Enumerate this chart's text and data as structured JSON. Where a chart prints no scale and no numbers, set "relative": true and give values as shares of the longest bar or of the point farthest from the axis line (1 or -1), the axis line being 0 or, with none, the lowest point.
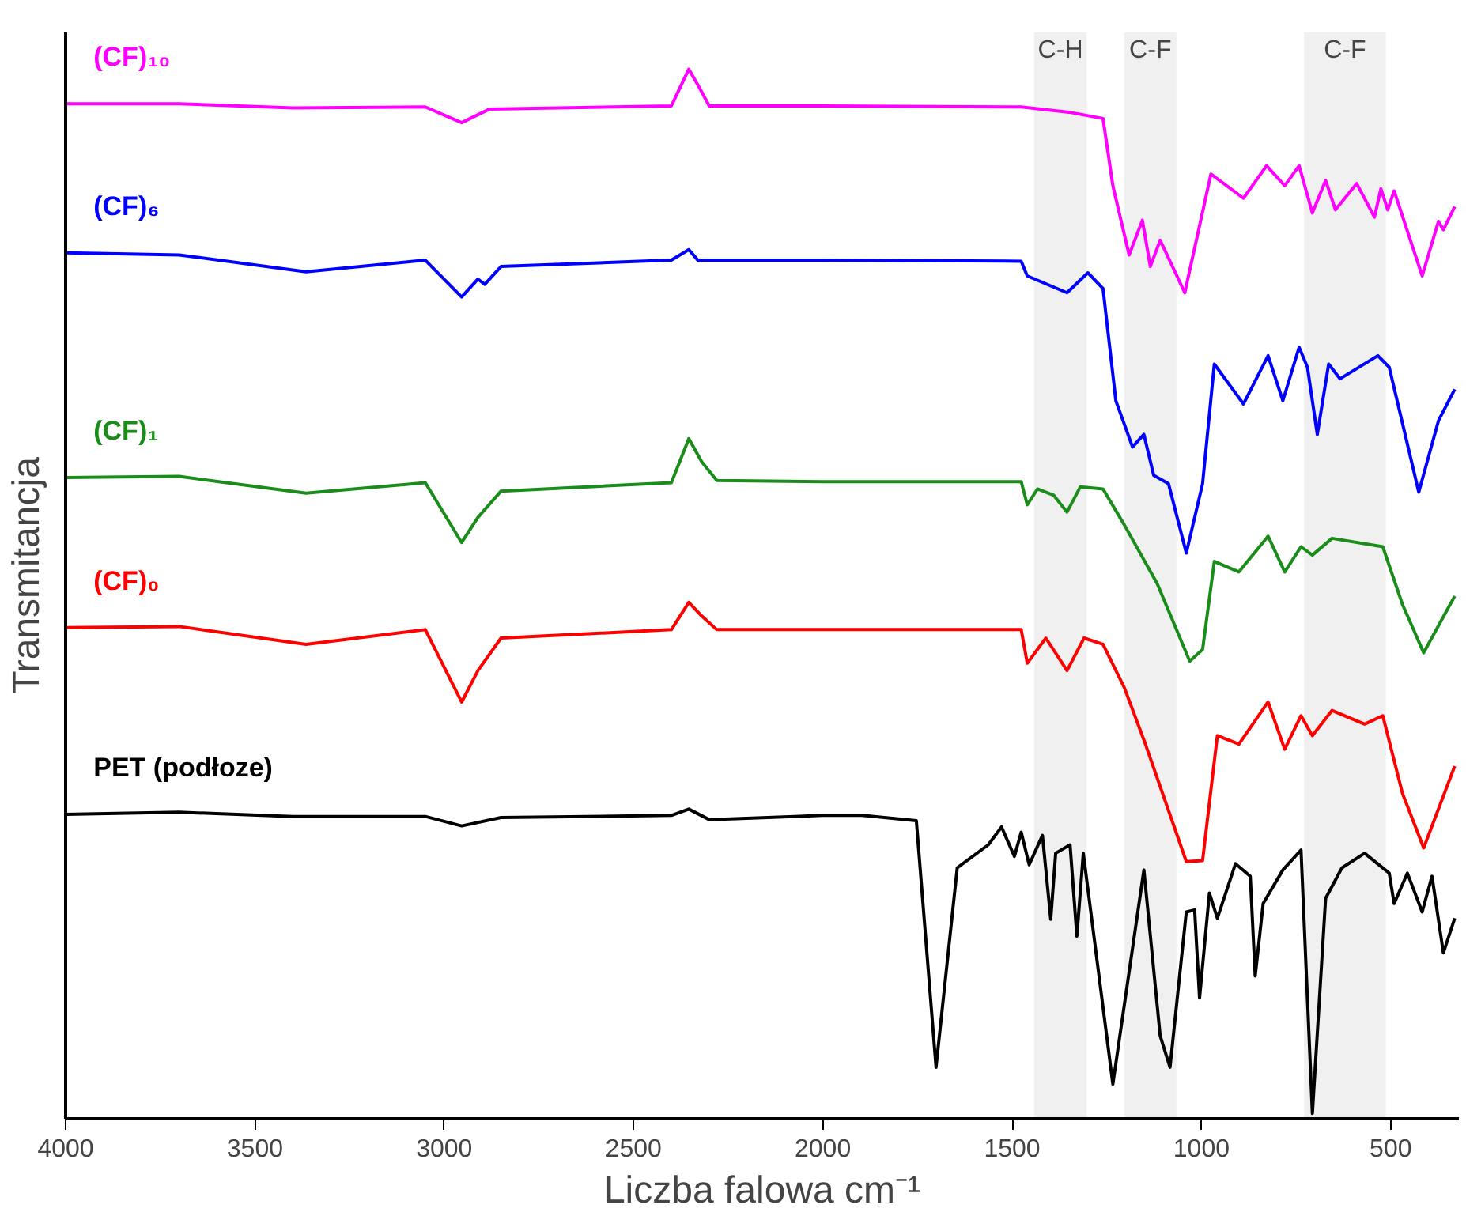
{
  "chart_data": {
    "type": "line",
    "relative": true,
    "xlabel": "Liczba falowa cm⁻¹",
    "ylabel": "Transmitancja",
    "xlim": [
      4000,
      320
    ],
    "xticks": [
      4000,
      3500,
      3000,
      2500,
      2000,
      1500,
      1000,
      500
    ],
    "grid": false,
    "line_style": "solid",
    "bands": [
      {
        "axis": "x",
        "from": 1442,
        "to": 1303,
        "label": "C-H",
        "color": "#f0f0f0"
      },
      {
        "axis": "x",
        "from": 1204,
        "to": 1066,
        "label": "C-F",
        "color": "#f0f0f0"
      },
      {
        "axis": "x",
        "from": 729,
        "to": 513,
        "label": "C-F",
        "color": "#f0f0f0"
      }
    ],
    "series": [
      {
        "name": "(CF)₁₀",
        "color": "#ff00ff",
        "x": [
          4000,
          3700,
          3400,
          3050,
          2954,
          2880,
          2400,
          2354,
          2330,
          2300,
          2000,
          1476,
          1350,
          1260,
          1234,
          1191,
          1156,
          1135,
          1109,
          1044,
          975,
          889,
          828,
          780,
          742,
          707,
          672,
          646,
          590,
          543,
          526,
          508,
          491,
          417,
          374,
          361,
          331
        ],
        "values": [
          0.967,
          0.967,
          0.963,
          0.964,
          0.949,
          0.962,
          0.965,
          1.0,
          0.985,
          0.965,
          0.965,
          0.964,
          0.959,
          0.953,
          0.889,
          0.823,
          0.856,
          0.812,
          0.837,
          0.787,
          0.9,
          0.877,
          0.908,
          0.889,
          0.908,
          0.863,
          0.894,
          0.866,
          0.891,
          0.859,
          0.886,
          0.866,
          0.884,
          0.803,
          0.855,
          0.847,
          0.869
        ]
      },
      {
        "name": "(CF)₆",
        "color": "#0000ff",
        "x": [
          4000,
          3700,
          3365,
          3050,
          2954,
          2911,
          2893,
          2850,
          2400,
          2354,
          2330,
          2000,
          1476,
          1460,
          1355,
          1300,
          1260,
          1226,
          1182,
          1152,
          1126,
          1087,
          1040,
          997,
          966,
          889,
          824,
          785,
          742,
          720,
          694,
          664,
          634,
          534,
          504,
          426,
          374,
          331
        ],
        "values": [
          0.825,
          0.823,
          0.807,
          0.818,
          0.783,
          0.8,
          0.795,
          0.812,
          0.818,
          0.828,
          0.818,
          0.818,
          0.817,
          0.803,
          0.787,
          0.806,
          0.791,
          0.684,
          0.64,
          0.652,
          0.613,
          0.605,
          0.539,
          0.605,
          0.719,
          0.681,
          0.727,
          0.684,
          0.735,
          0.716,
          0.652,
          0.719,
          0.705,
          0.727,
          0.716,
          0.597,
          0.665,
          0.695
        ]
      },
      {
        "name": "(CF)₁",
        "color": "#1a8c1a",
        "x": [
          4000,
          3700,
          3365,
          3050,
          2954,
          2911,
          2850,
          2400,
          2354,
          2320,
          2280,
          2000,
          1476,
          1460,
          1433,
          1390,
          1355,
          1320,
          1260,
          1204,
          1117,
          1031,
          997,
          966,
          901,
          824,
          780,
          737,
          707,
          655,
          521,
          469,
          413,
          331
        ],
        "values": [
          0.611,
          0.612,
          0.596,
          0.606,
          0.549,
          0.573,
          0.598,
          0.606,
          0.648,
          0.626,
          0.608,
          0.607,
          0.607,
          0.585,
          0.6,
          0.594,
          0.578,
          0.602,
          0.6,
          0.566,
          0.51,
          0.436,
          0.447,
          0.531,
          0.521,
          0.555,
          0.521,
          0.545,
          0.537,
          0.553,
          0.545,
          0.49,
          0.444,
          0.498
        ]
      },
      {
        "name": "(CF)₀",
        "color": "#ff0000",
        "x": [
          4000,
          3700,
          3365,
          3050,
          2954,
          2911,
          2850,
          2400,
          2354,
          2320,
          2280,
          2000,
          1476,
          1460,
          1411,
          1355,
          1310,
          1260,
          1204,
          1148,
          1040,
          997,
          958,
          901,
          824,
          780,
          737,
          707,
          655,
          569,
          521,
          469,
          413,
          331
        ],
        "values": [
          0.468,
          0.469,
          0.452,
          0.466,
          0.397,
          0.427,
          0.458,
          0.466,
          0.492,
          0.479,
          0.466,
          0.466,
          0.466,
          0.434,
          0.458,
          0.427,
          0.458,
          0.452,
          0.411,
          0.357,
          0.245,
          0.246,
          0.365,
          0.357,
          0.397,
          0.352,
          0.384,
          0.365,
          0.389,
          0.376,
          0.384,
          0.31,
          0.258,
          0.336
        ]
      },
      {
        "name": "PET (podłoze)",
        "color": "#000000",
        "x": [
          4000,
          3700,
          3400,
          3050,
          2954,
          2850,
          2400,
          2354,
          2300,
          2000,
          1896,
          1753,
          1701,
          1645,
          1563,
          1528,
          1494,
          1476,
          1455,
          1420,
          1398,
          1385,
          1347,
          1329,
          1312,
          1234,
          1152,
          1109,
          1083,
          1040,
          1018,
          1005,
          979,
          958,
          910,
          871,
          858,
          837,
          785,
          737,
          707,
          672,
          629,
          569,
          504,
          491,
          456,
          417,
          391,
          361,
          331
        ],
        "values": [
          0.29,
          0.292,
          0.288,
          0.288,
          0.279,
          0.287,
          0.289,
          0.295,
          0.285,
          0.289,
          0.289,
          0.284,
          0.049,
          0.239,
          0.261,
          0.278,
          0.25,
          0.273,
          0.242,
          0.27,
          0.19,
          0.253,
          0.261,
          0.174,
          0.253,
          0.033,
          0.237,
          0.079,
          0.049,
          0.197,
          0.199,
          0.115,
          0.215,
          0.191,
          0.243,
          0.231,
          0.136,
          0.205,
          0.237,
          0.256,
          0.005,
          0.21,
          0.239,
          0.253,
          0.234,
          0.205,
          0.234,
          0.197,
          0.231,
          0.158,
          0.191
        ]
      }
    ]
  }
}
